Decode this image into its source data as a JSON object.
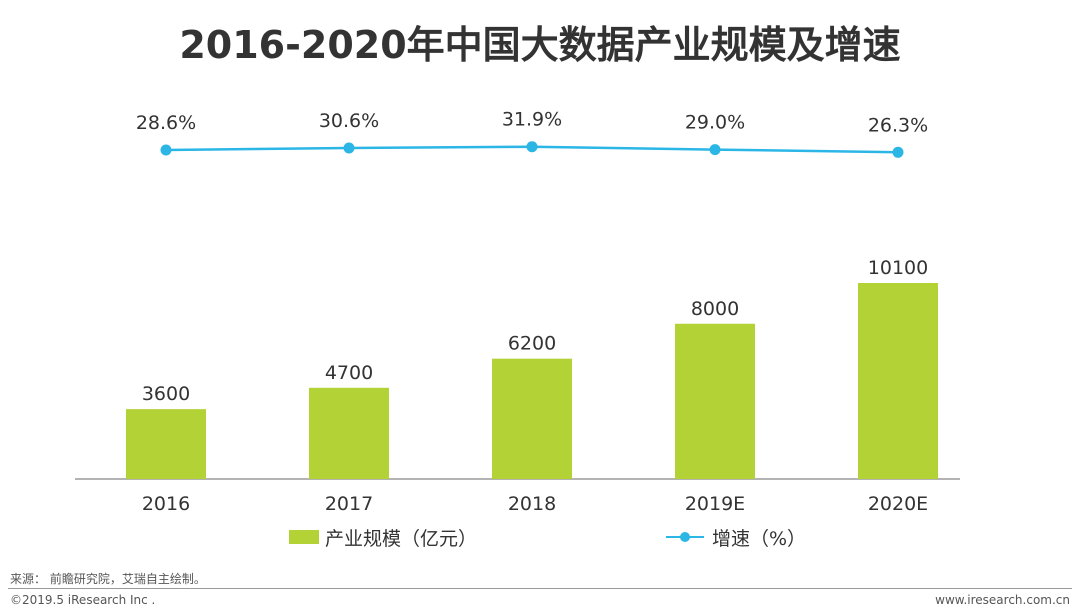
{
  "title": "2016-2020年中国大数据产业规模及增速",
  "chart_data": {
    "type": "bar+line",
    "categories": [
      "2016",
      "2017",
      "2018",
      "2019E",
      "2020E"
    ],
    "series": [
      {
        "name": "产业规模（亿元）",
        "type": "bar",
        "values": [
          3600,
          4700,
          6200,
          8000,
          10100
        ],
        "color": "#b2d235"
      },
      {
        "name": "增速（%）",
        "type": "line",
        "values": [
          28.6,
          30.6,
          31.9,
          29.0,
          26.3
        ],
        "labels": [
          "28.6%",
          "30.6%",
          "31.9%",
          "29.0%",
          "26.3%"
        ],
        "color": "#2bb6e6"
      }
    ],
    "bar_ylim": [
      0,
      12000
    ],
    "line_ylim": [
      0,
      100
    ],
    "legend_position": "bottom"
  },
  "legend": {
    "bar_label": "产业规模（亿元）",
    "line_label": "增速（%）"
  },
  "footer": {
    "source": "来源： 前瞻研究院，艾瑞自主绘制。",
    "copyright": "©2019.5 iResearch Inc .",
    "website": "www.iresearch.com.cn"
  },
  "colors": {
    "bar": "#b2d235",
    "line": "#2bb6e6",
    "axis": "#9a9a9a"
  }
}
